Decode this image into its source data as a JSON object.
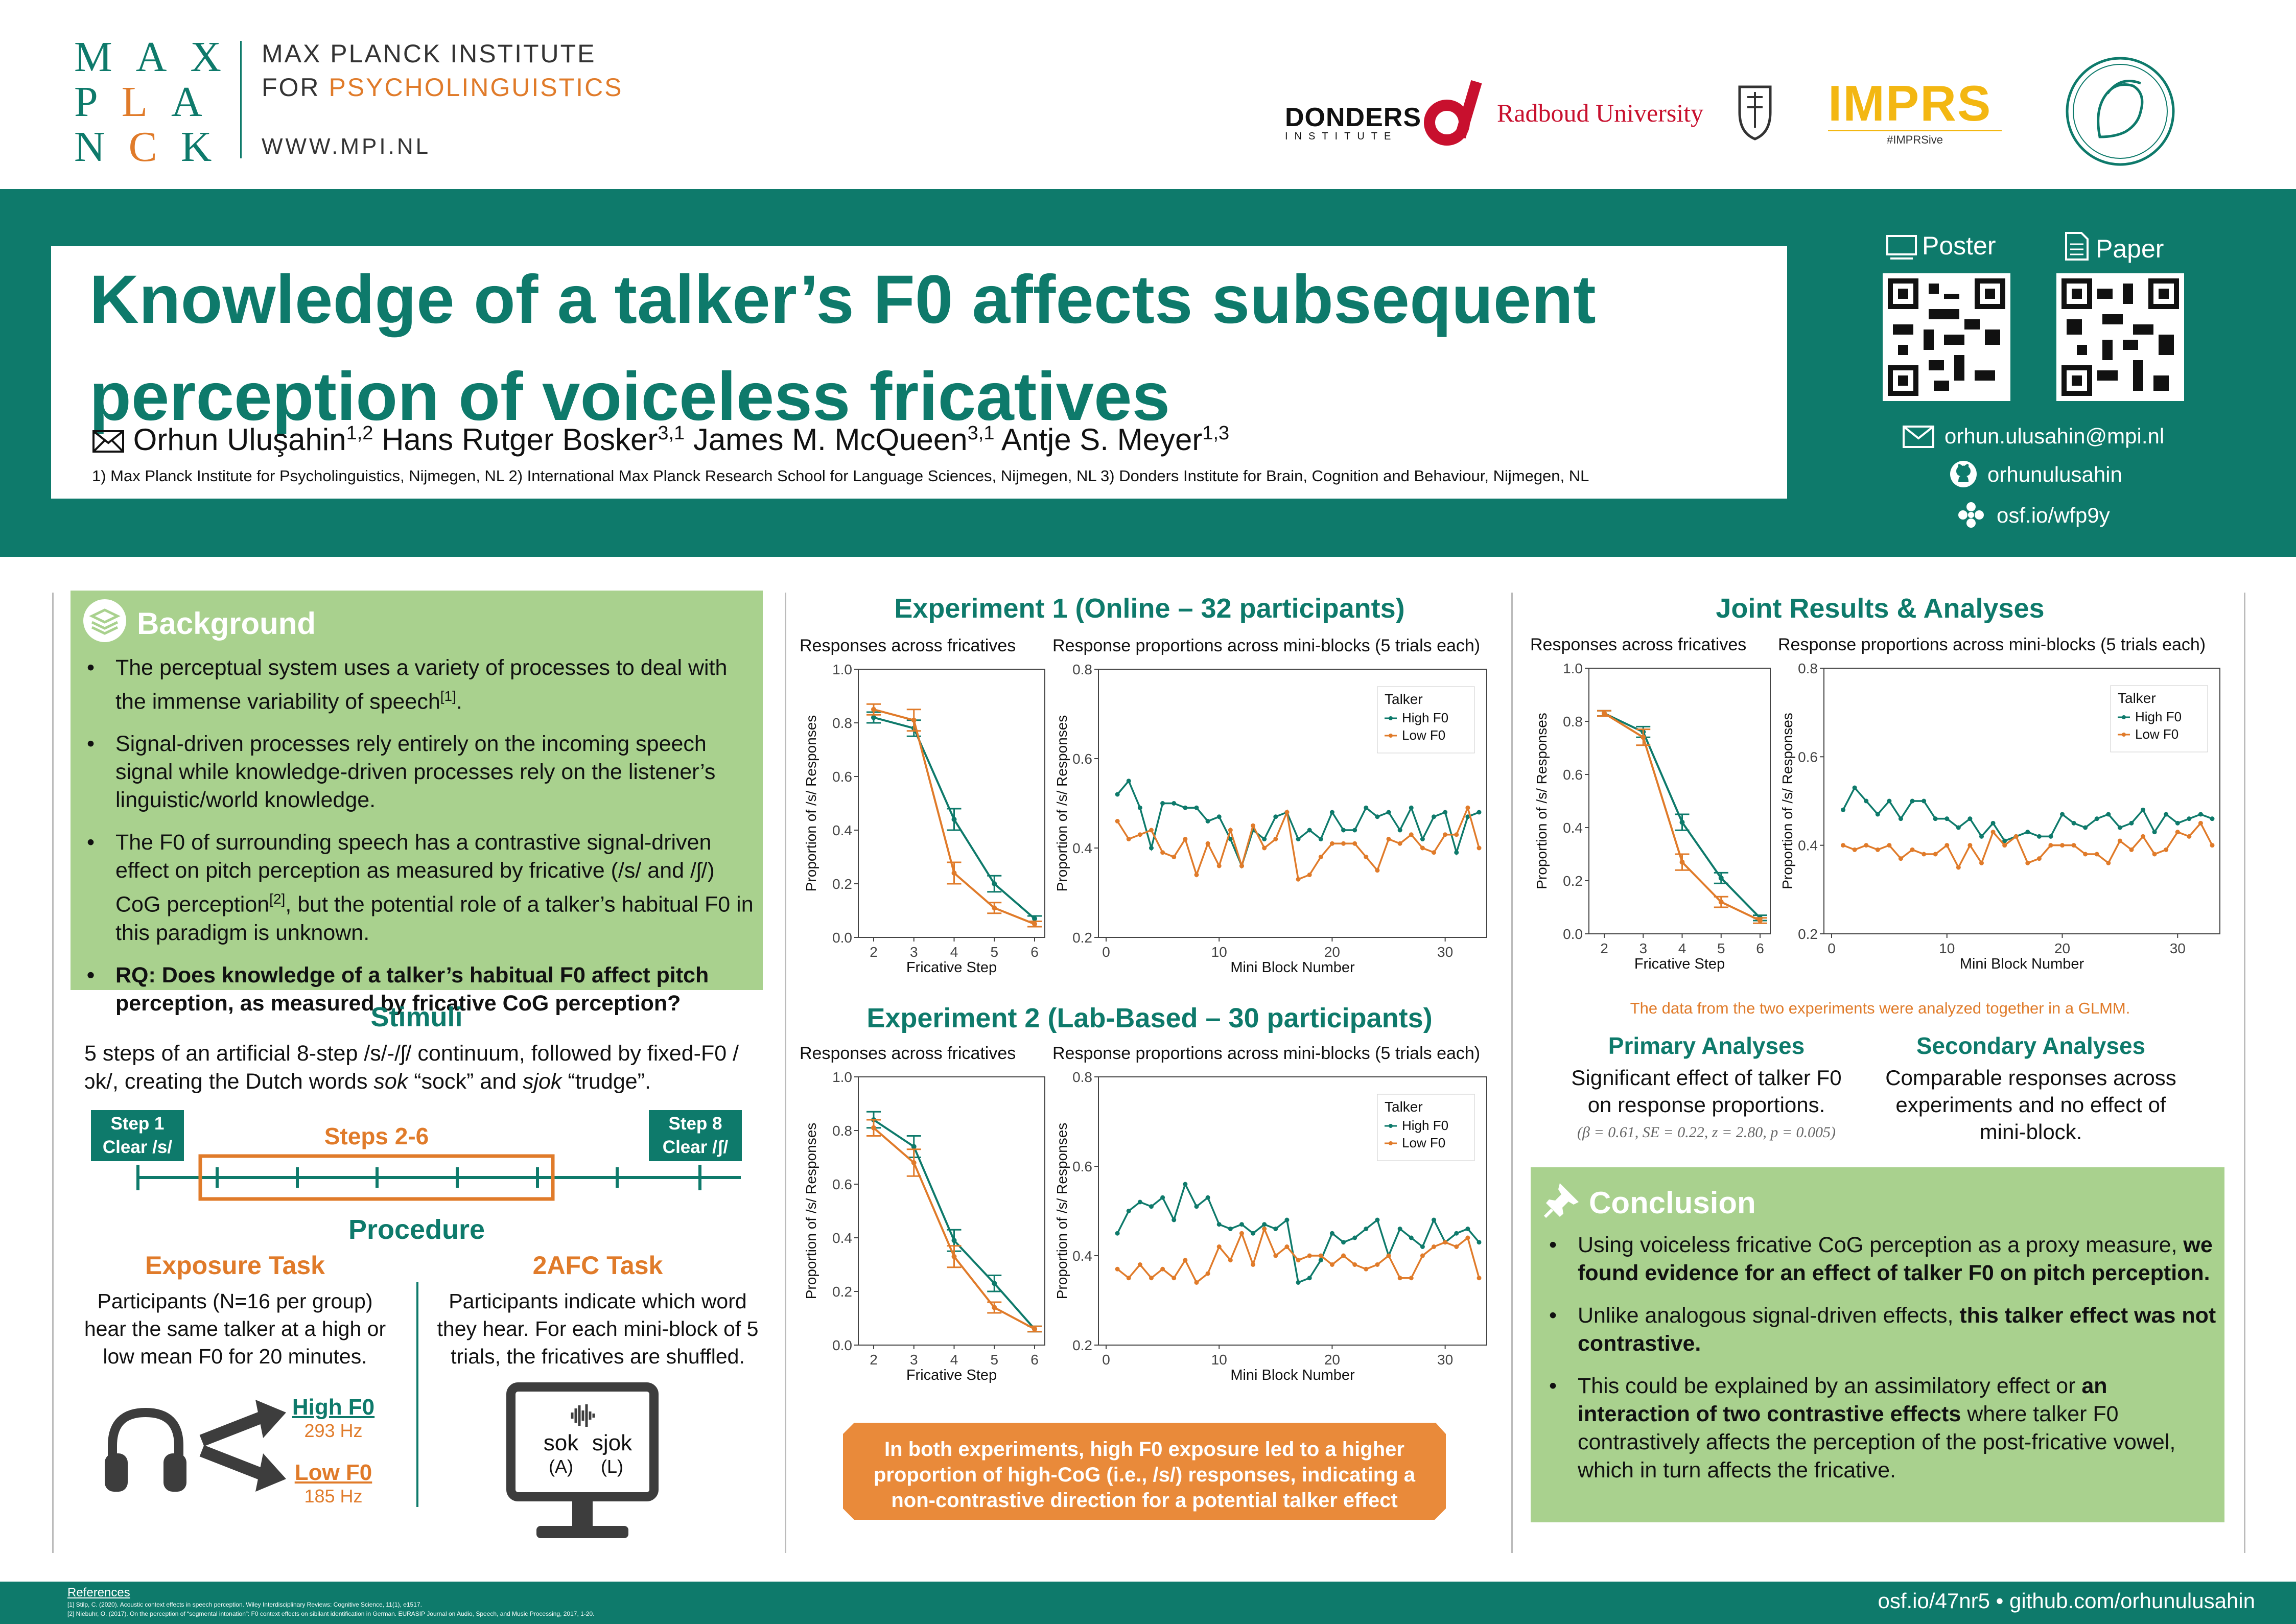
{
  "header": {
    "logo_letters": [
      [
        "M",
        "A",
        "X"
      ],
      [
        "P",
        "L",
        "A"
      ],
      [
        "N",
        "C",
        "K"
      ]
    ],
    "institute_line1": "MAX PLANCK INSTITUTE",
    "institute_line2_prefix": "FOR ",
    "institute_line2_highlight": "PSYCHOLINGUISTICS",
    "institute_url": "WWW.MPI.NL",
    "partner_logos": {
      "donders_name": "DONDERS",
      "donders_sub": "INSTITUTE",
      "radboud": "Radboud University",
      "imprs": "IMPRS",
      "imprs_sub": "#IMPRSive"
    }
  },
  "title": {
    "line1": "Knowledge of a talker’s F0 affects subsequent",
    "line2": "perception of voiceless fricatives"
  },
  "authors": [
    {
      "name": "Orhun Uluşahin",
      "sup": "1,2"
    },
    {
      "name": "Hans Rutger Bosker",
      "sup": "3,1"
    },
    {
      "name": "James M. McQueen",
      "sup": "3,1"
    },
    {
      "name": "Antje S. Meyer",
      "sup": "1,3"
    }
  ],
  "affiliations": "1) Max Planck Institute for Psycholinguistics, Nijmegen, NL  2) International Max Planck Research School for Language Sciences, Nijmegen, NL  3) Donders Institute for Brain, Cognition and Behaviour, Nijmegen, NL",
  "links": {
    "poster_label": "Poster",
    "paper_label": "Paper",
    "email": "orhun.ulusahin@mpi.nl",
    "github": "orhunulusahin",
    "osf": "osf.io/wfp9y"
  },
  "background": {
    "heading": "Background",
    "bullets": [
      {
        "text": "The perceptual system uses a variety of processes to deal with the immense variability of speech",
        "sup": "[1]",
        "after": "."
      },
      {
        "text": "Signal-driven processes rely entirely on the incoming speech signal while knowledge-driven processes rely on the listener’s linguistic/world knowledge.",
        "sup": "",
        "after": ""
      },
      {
        "text": "The F0 of surrounding speech has a contrastive signal-driven effect on pitch perception as measured by fricative (/s/ and /ʃ/) CoG perception",
        "sup": "[2]",
        "after": ", but the potential role of a talker’s habitual F0 in this paradigm is unknown."
      }
    ],
    "rq": "RQ: Does knowledge of a talker’s habitual F0 affect pitch perception, as measured by fricative CoG perception?"
  },
  "stimuli": {
    "heading": "Stimuli",
    "text_pre": "5 steps of an artificial 8-step /s/-/ʃ/ continuum, followed by fixed-F0 /ɔk/, creating the Dutch words ",
    "word1": "sok",
    "gloss1": " “sock” and ",
    "word2": "sjok",
    "gloss2": " “trudge”.",
    "step1": "Step 1\nClear /s/",
    "step1_a": "Step 1",
    "step1_b": "Clear /s/",
    "steps_mid": "Steps 2-6",
    "step8_a": "Step 8",
    "step8_b": "Clear /ʃ/"
  },
  "procedure": {
    "heading": "Procedure",
    "exposure_heading": "Exposure Task",
    "exposure_text": "Participants (N=16 per group) hear the same talker at a high or low mean F0 for 20 minutes.",
    "high_label": "High F0",
    "high_hz": "293 Hz",
    "low_label": "Low F0",
    "low_hz": "185 Hz",
    "afc_heading": "2AFC Task",
    "afc_text": "Participants indicate which word they hear. For each mini-block of 5 trials, the fricatives are shuffled.",
    "opt1": "sok",
    "opt1_key": "(A)",
    "opt2": "sjok",
    "opt2_key": "(L)"
  },
  "exp1": {
    "heading": "Experiment 1 (Online – 32 participants)"
  },
  "exp2": {
    "heading": "Experiment 2 (Lab-Based – 30 participants)"
  },
  "joint": {
    "heading": "Joint Results & Analyses",
    "glmm_note": "The data from the two experiments were analyzed together in a GLMM.",
    "primary_heading": "Primary Analyses",
    "primary_text": "Significant effect of talker F0 on response proportions.",
    "primary_stats": "(β = 0.61, SE = 0.22, z = 2.80, p = 0.005)",
    "secondary_heading": "Secondary Analyses",
    "secondary_text": "Comparable responses across experiments and no effect of mini-block."
  },
  "callout": "In both experiments, high F0 exposure led to a higher proportion of high-CoG (i.e., /s/) responses, indicating a non-contrastive direction for a potential talker effect",
  "conclusion": {
    "heading": "Conclusion",
    "b1_pre": "Using voiceless fricative CoG perception as a proxy measure, ",
    "b1_bold": "we found evidence for an effect of talker F0 on pitch perception.",
    "b2_pre": "Unlike analogous signal-driven effects, ",
    "b2_bold": "this talker effect was not contrastive.",
    "b3_pre": "This could be explained by an assimilatory effect or ",
    "b3_bold": "an interaction of two contrastive effects",
    "b3_post": " where talker F0 contrastively affects the perception of the post-fricative vowel, which in turn affects the fricative."
  },
  "footer": {
    "refs_heading": "References",
    "ref1": "[1] Stilp, C. (2020). Acoustic context effects in speech perception. Wiley Interdisciplinary Reviews: Cognitive Science, 11(1), e1517.",
    "ref2": "[2] Niebuhr, O. (2017). On the perception of “segmental intonation”: F0 context effects on sibilant identification in German. EURASIP Journal on Audio, Speech, and Music Processing, 2017, 1-20.",
    "links": "osf.io/47nr5 • github.com/orhunulusahin"
  },
  "colors": {
    "teal": "#0e7a6b",
    "orange": "#e07b2a",
    "green_box": "#a9d18e",
    "callout": "#e98a3a"
  },
  "chart_data": [
    {
      "id": "exp1-fricatives",
      "type": "line",
      "title": "Responses across fricatives",
      "xlabel": "Fricative Step",
      "ylabel": "Proportion of /s/ Responses",
      "x": [
        2,
        3,
        4,
        5,
        6
      ],
      "ylim": [
        0,
        1
      ],
      "yticks": [
        "0.0",
        "0.2",
        "0.4",
        "0.6",
        "0.8",
        "1.0"
      ],
      "series": [
        {
          "name": "High F0",
          "color": "#0e7a6b",
          "values": [
            0.82,
            0.78,
            0.44,
            0.2,
            0.07
          ],
          "err": [
            0.02,
            0.03,
            0.04,
            0.03,
            0.01
          ]
        },
        {
          "name": "Low F0",
          "color": "#e07b2a",
          "values": [
            0.85,
            0.81,
            0.24,
            0.11,
            0.05
          ],
          "err": [
            0.02,
            0.04,
            0.04,
            0.02,
            0.01
          ]
        }
      ]
    },
    {
      "id": "exp1-miniblocks",
      "type": "line",
      "title": "Response proportions across mini-blocks (5 trials each)",
      "xlabel": "Mini Block Number",
      "ylabel": "Proportion of /s/ Responses",
      "ylim": [
        0.2,
        0.8
      ],
      "xlim": [
        0,
        33
      ],
      "yticks": [
        "0.2",
        "0.4",
        "0.6",
        "0.8"
      ],
      "xticks": [
        "0",
        "10",
        "20",
        "30"
      ],
      "legend_title": "Talker",
      "series": [
        {
          "name": "High F0",
          "color": "#0e7a6b",
          "values": [
            0.52,
            0.55,
            0.49,
            0.4,
            0.5,
            0.5,
            0.49,
            0.49,
            0.46,
            0.47,
            0.42,
            0.36,
            0.44,
            0.42,
            0.47,
            0.48,
            0.42,
            0.44,
            0.42,
            0.48,
            0.44,
            0.44,
            0.49,
            0.47,
            0.48,
            0.44,
            0.49,
            0.42,
            0.47,
            0.48,
            0.39,
            0.47,
            0.48
          ]
        },
        {
          "name": "Low F0",
          "color": "#e07b2a",
          "values": [
            0.46,
            0.42,
            0.43,
            0.44,
            0.39,
            0.38,
            0.42,
            0.34,
            0.41,
            0.36,
            0.44,
            0.36,
            0.45,
            0.4,
            0.42,
            0.48,
            0.33,
            0.34,
            0.38,
            0.41,
            0.41,
            0.41,
            0.38,
            0.35,
            0.42,
            0.41,
            0.43,
            0.4,
            0.39,
            0.43,
            0.43,
            0.49,
            0.4
          ]
        }
      ]
    },
    {
      "id": "exp2-fricatives",
      "type": "line",
      "title": "Responses across fricatives",
      "xlabel": "Fricative Step",
      "ylabel": "Proportion of /s/ Responses",
      "x": [
        2,
        3,
        4,
        5,
        6
      ],
      "ylim": [
        0,
        1
      ],
      "yticks": [
        "0.0",
        "0.2",
        "0.4",
        "0.6",
        "0.8",
        "1.0"
      ],
      "series": [
        {
          "name": "High F0",
          "color": "#0e7a6b",
          "values": [
            0.84,
            0.74,
            0.39,
            0.23,
            0.06
          ],
          "err": [
            0.03,
            0.04,
            0.04,
            0.03,
            0.01
          ]
        },
        {
          "name": "Low F0",
          "color": "#e07b2a",
          "values": [
            0.81,
            0.68,
            0.33,
            0.14,
            0.06
          ],
          "err": [
            0.03,
            0.05,
            0.04,
            0.02,
            0.01
          ]
        }
      ]
    },
    {
      "id": "exp2-miniblocks",
      "type": "line",
      "title": "Response proportions across mini-blocks (5 trials each)",
      "xlabel": "Mini Block Number",
      "ylabel": "Proportion of /s/ Responses",
      "ylim": [
        0.2,
        0.8
      ],
      "xlim": [
        0,
        33
      ],
      "yticks": [
        "0.2",
        "0.4",
        "0.6",
        "0.8"
      ],
      "xticks": [
        "0",
        "10",
        "20",
        "30"
      ],
      "legend_title": "Talker",
      "series": [
        {
          "name": "High F0",
          "color": "#0e7a6b",
          "values": [
            0.45,
            0.5,
            0.52,
            0.51,
            0.53,
            0.48,
            0.56,
            0.51,
            0.53,
            0.47,
            0.46,
            0.47,
            0.45,
            0.47,
            0.46,
            0.48,
            0.34,
            0.35,
            0.39,
            0.45,
            0.43,
            0.44,
            0.46,
            0.48,
            0.4,
            0.46,
            0.44,
            0.42,
            0.48,
            0.43,
            0.45,
            0.46,
            0.43
          ]
        },
        {
          "name": "Low F0",
          "color": "#e07b2a",
          "values": [
            0.37,
            0.35,
            0.38,
            0.35,
            0.37,
            0.35,
            0.39,
            0.34,
            0.36,
            0.42,
            0.39,
            0.45,
            0.38,
            0.46,
            0.4,
            0.42,
            0.39,
            0.4,
            0.4,
            0.38,
            0.4,
            0.38,
            0.37,
            0.38,
            0.4,
            0.35,
            0.35,
            0.4,
            0.42,
            0.43,
            0.42,
            0.44,
            0.35
          ]
        }
      ]
    },
    {
      "id": "joint-fricatives",
      "type": "line",
      "title": "Responses across fricatives",
      "xlabel": "Fricative Step",
      "ylabel": "Proportion of /s/ Responses",
      "x": [
        2,
        3,
        4,
        5,
        6
      ],
      "ylim": [
        0,
        1
      ],
      "yticks": [
        "0.0",
        "0.2",
        "0.4",
        "0.6",
        "0.8",
        "1.0"
      ],
      "series": [
        {
          "name": "High F0",
          "color": "#0e7a6b",
          "values": [
            0.83,
            0.76,
            0.42,
            0.21,
            0.06
          ],
          "err": [
            0.01,
            0.02,
            0.03,
            0.02,
            0.01
          ]
        },
        {
          "name": "Low F0",
          "color": "#e07b2a",
          "values": [
            0.83,
            0.74,
            0.27,
            0.12,
            0.05
          ],
          "err": [
            0.01,
            0.03,
            0.03,
            0.02,
            0.01
          ]
        }
      ]
    },
    {
      "id": "joint-miniblocks",
      "type": "line",
      "title": "Response proportions across mini-blocks (5 trials each)",
      "xlabel": "Mini Block Number",
      "ylabel": "Proportion of /s/ Responses",
      "ylim": [
        0.2,
        0.8
      ],
      "xlim": [
        0,
        33
      ],
      "yticks": [
        "0.2",
        "0.4",
        "0.6",
        "0.8"
      ],
      "xticks": [
        "0",
        "10",
        "20",
        "30"
      ],
      "legend_title": "Talker",
      "series": [
        {
          "name": "High F0",
          "color": "#0e7a6b",
          "values": [
            0.48,
            0.53,
            0.5,
            0.47,
            0.5,
            0.46,
            0.5,
            0.5,
            0.46,
            0.46,
            0.44,
            0.46,
            0.42,
            0.45,
            0.41,
            0.42,
            0.43,
            0.42,
            0.42,
            0.47,
            0.45,
            0.44,
            0.46,
            0.47,
            0.44,
            0.45,
            0.48,
            0.43,
            0.47,
            0.45,
            0.46,
            0.47,
            0.46
          ]
        },
        {
          "name": "Low F0",
          "color": "#e07b2a",
          "values": [
            0.4,
            0.39,
            0.4,
            0.39,
            0.4,
            0.37,
            0.39,
            0.38,
            0.38,
            0.4,
            0.35,
            0.4,
            0.36,
            0.43,
            0.4,
            0.42,
            0.36,
            0.37,
            0.4,
            0.4,
            0.4,
            0.38,
            0.38,
            0.36,
            0.41,
            0.39,
            0.42,
            0.38,
            0.39,
            0.43,
            0.42,
            0.45,
            0.4
          ]
        }
      ]
    }
  ]
}
